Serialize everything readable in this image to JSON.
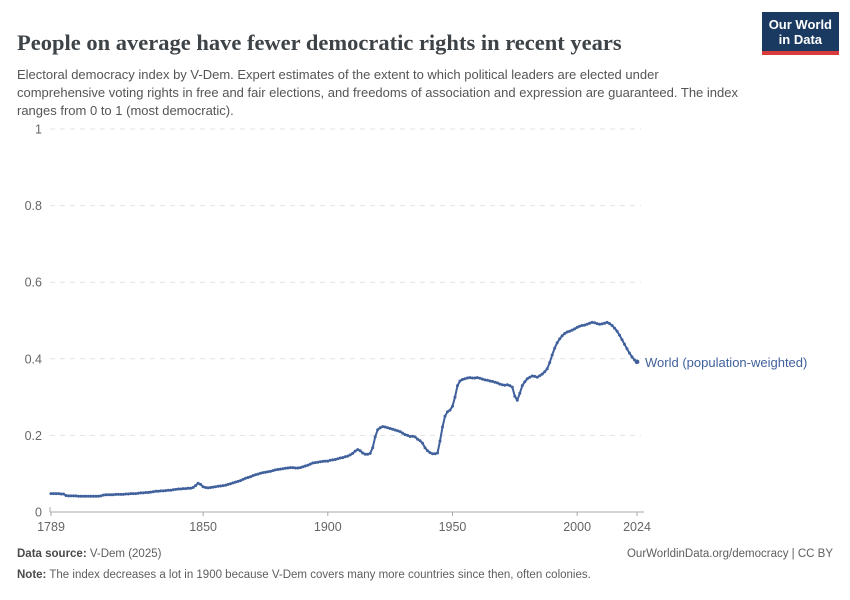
{
  "header": {
    "title": "People on average have fewer democratic rights in recent years",
    "subtitle": "Electoral democracy index by V-Dem. Expert estimates of the extent to which political leaders are elected under comprehensive voting rights in free and fair elections, and freedoms of association and expression are guaranteed. The index ranges from 0 to 1 (most democratic)."
  },
  "logo": {
    "line1": "Our World",
    "line2": "in Data"
  },
  "footer": {
    "data_source_label": "Data source:",
    "data_source_value": " V-Dem (2025)",
    "url_text": "OurWorldinData.org/democracy | CC BY",
    "note_label": "Note:",
    "note_value": " The index decreases a lot in 1900 because V-Dem covers many more countries since then, often colonies."
  },
  "colors": {
    "line": "#40619c",
    "series_label": "#40619c",
    "grid": "#e2e2e2",
    "axis": "#a8a8a8",
    "tick_text": "#666666",
    "logo_bg": "#1a3a62",
    "logo_red": "#d93a3b"
  },
  "chart_data": {
    "type": "line",
    "title": "People on average have fewer democratic rights in recent years",
    "xlabel": "",
    "ylabel": "Electoral democracy index",
    "xlim": [
      1789,
      2024
    ],
    "ylim": [
      0,
      1
    ],
    "xticks": [
      1789,
      1850,
      1900,
      1950,
      2000,
      2024
    ],
    "yticks": [
      0,
      0.2,
      0.4,
      0.6,
      0.8,
      1
    ],
    "grid": "dashed-horizontal",
    "legend_position": "end-of-line",
    "series": [
      {
        "name": "World (population-weighted)",
        "x_start": 1789,
        "x_step": 1,
        "values": [
          0.048,
          0.048,
          0.048,
          0.048,
          0.047,
          0.047,
          0.043,
          0.042,
          0.042,
          0.042,
          0.042,
          0.041,
          0.041,
          0.041,
          0.041,
          0.041,
          0.041,
          0.041,
          0.041,
          0.041,
          0.042,
          0.044,
          0.045,
          0.045,
          0.045,
          0.045,
          0.046,
          0.046,
          0.046,
          0.046,
          0.047,
          0.047,
          0.048,
          0.048,
          0.048,
          0.049,
          0.05,
          0.05,
          0.051,
          0.051,
          0.052,
          0.053,
          0.054,
          0.054,
          0.055,
          0.055,
          0.056,
          0.057,
          0.057,
          0.058,
          0.059,
          0.06,
          0.06,
          0.061,
          0.061,
          0.062,
          0.062,
          0.064,
          0.069,
          0.075,
          0.072,
          0.066,
          0.064,
          0.063,
          0.064,
          0.065,
          0.066,
          0.067,
          0.068,
          0.069,
          0.07,
          0.072,
          0.074,
          0.076,
          0.078,
          0.08,
          0.082,
          0.085,
          0.088,
          0.09,
          0.092,
          0.095,
          0.097,
          0.099,
          0.101,
          0.103,
          0.104,
          0.105,
          0.106,
          0.108,
          0.11,
          0.111,
          0.112,
          0.113,
          0.114,
          0.115,
          0.116,
          0.116,
          0.115,
          0.115,
          0.116,
          0.118,
          0.12,
          0.122,
          0.125,
          0.128,
          0.129,
          0.13,
          0.131,
          0.132,
          0.133,
          0.133,
          0.135,
          0.136,
          0.137,
          0.139,
          0.141,
          0.142,
          0.144,
          0.146,
          0.149,
          0.153,
          0.159,
          0.163,
          0.16,
          0.154,
          0.151,
          0.151,
          0.153,
          0.168,
          0.196,
          0.215,
          0.22,
          0.223,
          0.222,
          0.22,
          0.218,
          0.216,
          0.214,
          0.212,
          0.21,
          0.206,
          0.202,
          0.2,
          0.197,
          0.198,
          0.196,
          0.19,
          0.186,
          0.18,
          0.168,
          0.16,
          0.155,
          0.152,
          0.152,
          0.154,
          0.185,
          0.222,
          0.25,
          0.262,
          0.266,
          0.276,
          0.3,
          0.33,
          0.342,
          0.346,
          0.348,
          0.35,
          0.351,
          0.35,
          0.35,
          0.351,
          0.349,
          0.347,
          0.345,
          0.344,
          0.342,
          0.341,
          0.339,
          0.337,
          0.334,
          0.332,
          0.331,
          0.332,
          0.33,
          0.326,
          0.302,
          0.292,
          0.31,
          0.33,
          0.34,
          0.348,
          0.352,
          0.355,
          0.354,
          0.352,
          0.356,
          0.36,
          0.366,
          0.374,
          0.39,
          0.41,
          0.428,
          0.442,
          0.452,
          0.46,
          0.466,
          0.47,
          0.472,
          0.475,
          0.478,
          0.482,
          0.485,
          0.487,
          0.488,
          0.49,
          0.493,
          0.495,
          0.494,
          0.492,
          0.49,
          0.491,
          0.493,
          0.495,
          0.492,
          0.487,
          0.48,
          0.472,
          0.462,
          0.45,
          0.438,
          0.426,
          0.415,
          0.405,
          0.397,
          0.392
        ]
      }
    ]
  }
}
